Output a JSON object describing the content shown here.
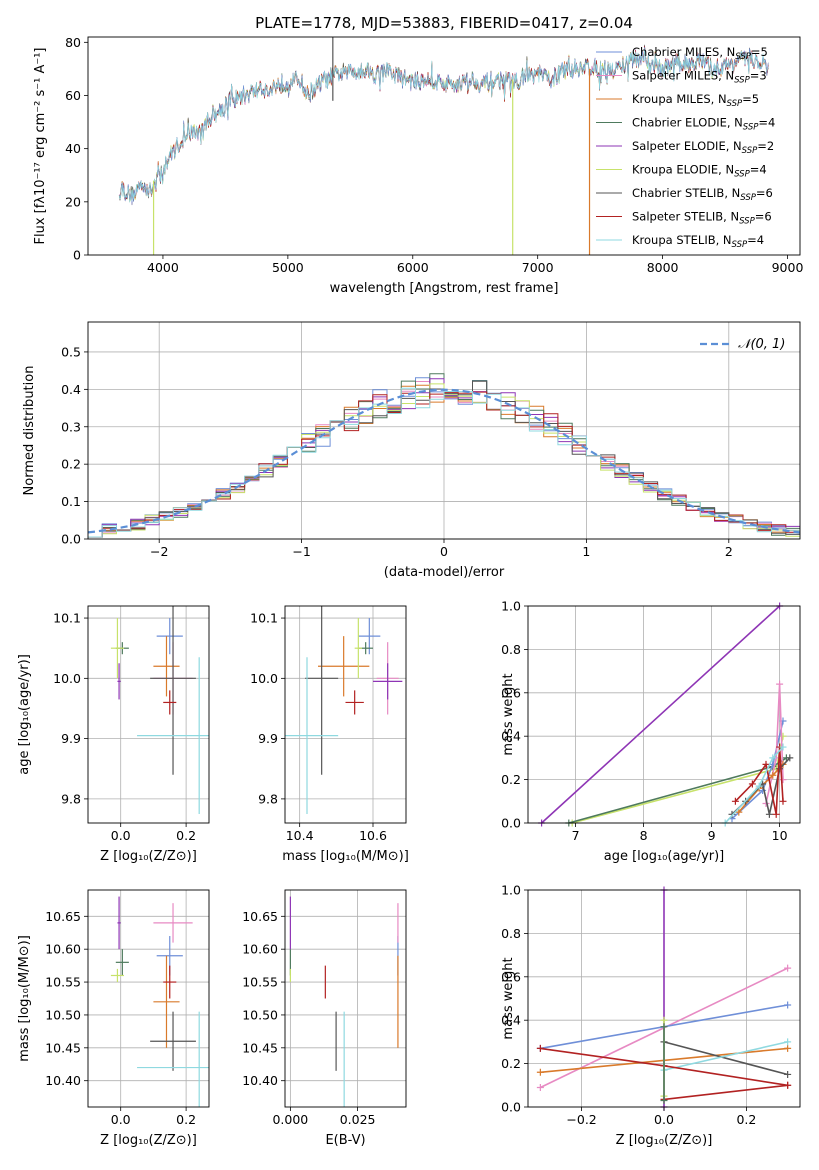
{
  "colors": {
    "blue": "#6f8fd8",
    "pink": "#e78ac3",
    "orange": "#d97a2b",
    "darkgreen": "#4e7a5d",
    "purple": "#8e35b5",
    "yellowgreen": "#c7e26a",
    "darkgray": "#555555",
    "darkred": "#b22222",
    "cyan": "#8fd9e0",
    "gauss": "#5b8fd6",
    "grid": "#b0b0b0"
  },
  "chart_data": [
    {
      "id": "spectrum",
      "type": "line",
      "title": "PLATE=1778, MJD=53883, FIBERID=0417, z=0.04",
      "xlabel": "wavelength [Angstrom, rest frame]",
      "ylabel": "Flux [fλ10⁻¹⁷ erg cm⁻² s⁻¹ A⁻¹]",
      "xlim": [
        3400,
        9100
      ],
      "ylim": [
        0,
        82
      ],
      "xticks": [
        4000,
        5000,
        6000,
        7000,
        8000,
        9000
      ],
      "yticks": [
        0,
        20,
        40,
        60,
        80
      ],
      "grid": false,
      "legend_position": "upper-right",
      "legend": [
        {
          "label": "Chabrier MILES, N",
          "sub": "SSP",
          "suffix": "=5",
          "color": "blue"
        },
        {
          "label": "Salpeter MILES, N",
          "sub": "SSP",
          "suffix": "=3",
          "color": "pink"
        },
        {
          "label": "Kroupa MILES, N",
          "sub": "SSP",
          "suffix": "=5",
          "color": "orange"
        },
        {
          "label": "Chabrier ELODIE, N",
          "sub": "SSP",
          "suffix": "=4",
          "color": "darkgreen"
        },
        {
          "label": "Salpeter ELODIE, N",
          "sub": "SSP",
          "suffix": "=2",
          "color": "purple"
        },
        {
          "label": "Kroupa ELODIE, N",
          "sub": "SSP",
          "suffix": "=4",
          "color": "yellowgreen"
        },
        {
          "label": "Chabrier STELIB, N",
          "sub": "SSP",
          "suffix": "=6",
          "color": "darkgray"
        },
        {
          "label": "Salpeter STELIB, N",
          "sub": "SSP",
          "suffix": "=6",
          "color": "darkred"
        },
        {
          "label": "Kroupa STELIB, N",
          "sub": "SSP",
          "suffix": "=4",
          "color": "cyan"
        }
      ],
      "continuum": [
        [
          3650,
          26
        ],
        [
          3700,
          24
        ],
        [
          3750,
          22
        ],
        [
          3800,
          25
        ],
        [
          3850,
          27
        ],
        [
          3900,
          23
        ],
        [
          3950,
          29
        ],
        [
          4000,
          30
        ],
        [
          4050,
          37
        ],
        [
          4100,
          40
        ],
        [
          4150,
          43
        ],
        [
          4200,
          44
        ],
        [
          4250,
          47
        ],
        [
          4300,
          45
        ],
        [
          4350,
          50
        ],
        [
          4400,
          53
        ],
        [
          4450,
          54
        ],
        [
          4500,
          57
        ],
        [
          4600,
          59
        ],
        [
          4700,
          61
        ],
        [
          4800,
          63
        ],
        [
          4850,
          61
        ],
        [
          4900,
          64
        ],
        [
          5000,
          65
        ],
        [
          5100,
          66
        ],
        [
          5150,
          60
        ],
        [
          5200,
          62
        ],
        [
          5300,
          66
        ],
        [
          5400,
          68
        ],
        [
          5500,
          69
        ],
        [
          5600,
          70
        ],
        [
          5700,
          68
        ],
        [
          5800,
          69
        ],
        [
          5900,
          67
        ],
        [
          6000,
          65
        ],
        [
          6100,
          66
        ],
        [
          6200,
          65
        ],
        [
          6300,
          64
        ],
        [
          6400,
          65
        ],
        [
          6500,
          66
        ],
        [
          6560,
          64
        ],
        [
          6600,
          65
        ],
        [
          6700,
          66
        ],
        [
          6800,
          65
        ],
        [
          6900,
          67
        ],
        [
          7000,
          68
        ],
        [
          7100,
          66
        ],
        [
          7200,
          69
        ],
        [
          7300,
          70
        ],
        [
          7400,
          71
        ],
        [
          7500,
          70
        ],
        [
          7600,
          69
        ],
        [
          7700,
          72
        ],
        [
          7800,
          74
        ],
        [
          7900,
          72
        ],
        [
          8000,
          70
        ],
        [
          8100,
          72
        ],
        [
          8200,
          72
        ],
        [
          8300,
          73
        ],
        [
          8400,
          70
        ],
        [
          8500,
          71
        ],
        [
          8600,
          73
        ],
        [
          8700,
          74
        ],
        [
          8800,
          72
        ],
        [
          8850,
          70
        ]
      ],
      "glitches": [
        {
          "x": 3925,
          "ymin": 0,
          "ymax": 28,
          "color": "yellowgreen"
        },
        {
          "x": 6800,
          "ymin": 0,
          "ymax": 66,
          "color": "yellowgreen"
        },
        {
          "x": 7415,
          "ymin": 0,
          "ymax": 70,
          "color": "orange"
        },
        {
          "x": 5360,
          "ymin": 58,
          "ymax": 82,
          "color": "darkgray"
        }
      ]
    },
    {
      "id": "residuals",
      "type": "area",
      "xlabel": "(data-model)/error",
      "ylabel": "Normed distribution",
      "xlim": [
        -2.5,
        2.5
      ],
      "ylim": [
        0,
        0.58
      ],
      "xticks": [
        -2,
        -1,
        0,
        1,
        2
      ],
      "yticks": [
        0.0,
        0.1,
        0.2,
        0.3,
        0.4,
        0.5
      ],
      "grid": true,
      "legend_position": "upper-right",
      "gaussian_label": "𝒩(0, 1)",
      "bin_width": 0.1,
      "bin_start": -2.5
    },
    {
      "id": "age_vs_Z",
      "type": "scatter",
      "xlabel": "Z [log₁₀(Z/Z⊙)]",
      "ylabel": "age  [log₁₀(age/yr)]",
      "xlim": [
        -0.1,
        0.27
      ],
      "ylim": [
        9.76,
        10.12
      ],
      "xticks": [
        0.0,
        0.2
      ],
      "yticks": [
        9.8,
        9.9,
        10.0,
        10.1
      ],
      "grid": true
    },
    {
      "id": "age_vs_mass",
      "type": "scatter",
      "xlabel": "mass [log₁₀(M/M⊙)]",
      "ylabel": "",
      "xlim": [
        10.36,
        10.69
      ],
      "ylim": [
        9.76,
        10.12
      ],
      "xticks": [
        10.4,
        10.6
      ],
      "yticks": [
        9.8,
        9.9,
        10.0,
        10.1
      ],
      "grid": true
    },
    {
      "id": "weight_vs_age",
      "type": "line",
      "xlabel": "age  [log₁₀(age/yr)]",
      "ylabel": "mass weight",
      "xlim": [
        6.3,
        10.3
      ],
      "ylim": [
        0,
        1.0
      ],
      "xticks": [
        7,
        8,
        9,
        10
      ],
      "yticks": [
        0.0,
        0.2,
        0.4,
        0.6,
        0.8,
        1.0
      ],
      "grid": true
    },
    {
      "id": "mass_vs_Z",
      "type": "scatter",
      "xlabel": "Z [log₁₀(Z/Z⊙)]",
      "ylabel": "mass [log₁₀(M/M⊙)]",
      "xlim": [
        -0.1,
        0.27
      ],
      "ylim": [
        10.36,
        10.69
      ],
      "xticks": [
        0.0,
        0.2
      ],
      "yticks": [
        10.4,
        10.45,
        10.5,
        10.55,
        10.6,
        10.65
      ],
      "grid": true
    },
    {
      "id": "mass_vs_ebv",
      "type": "scatter",
      "xlabel": "E(B-V)",
      "ylabel": "",
      "xlim": [
        -0.002,
        0.043
      ],
      "ylim": [
        10.36,
        10.69
      ],
      "xticks": [
        0.0,
        0.025
      ],
      "yticks": [
        10.4,
        10.45,
        10.5,
        10.55,
        10.6,
        10.65
      ],
      "grid": true
    },
    {
      "id": "weight_vs_Z",
      "type": "line",
      "xlabel": "Z [log₁₀(Z/Z⊙)]",
      "ylabel": "mass weight",
      "xlim": [
        -0.33,
        0.33
      ],
      "ylim": [
        0,
        1.0
      ],
      "xticks": [
        -0.2,
        0.0,
        0.2
      ],
      "yticks": [
        0.0,
        0.2,
        0.4,
        0.6,
        0.8,
        1.0
      ],
      "grid": true
    }
  ],
  "fits": [
    {
      "color": "blue",
      "Z": 0.15,
      "Zerr": 0.04,
      "age": 10.07,
      "ageerr": 0.03,
      "mass": 10.59,
      "masserr": 0.03,
      "ebv": 0.04
    },
    {
      "color": "pink",
      "Z": 0.16,
      "Zerr": 0.06,
      "age": 10.0,
      "ageerr": 0.06,
      "mass": 10.64,
      "masserr": 0.03,
      "ebv": 0.04
    },
    {
      "color": "orange",
      "Z": 0.14,
      "Zerr": 0.04,
      "age": 10.02,
      "ageerr": 0.05,
      "mass": 10.52,
      "masserr": 0.07,
      "ebv": 0.04
    },
    {
      "color": "darkgreen",
      "Z": 0.005,
      "Zerr": 0.02,
      "age": 10.05,
      "ageerr": 0.01,
      "mass": 10.58,
      "masserr": 0.02,
      "ebv": 0.0
    },
    {
      "color": "purple",
      "Z": -0.005,
      "Zerr": 0.005,
      "age": 9.995,
      "ageerr": 0.03,
      "mass": 10.64,
      "masserr": 0.04,
      "ebv": 0.0
    },
    {
      "color": "yellowgreen",
      "Z": -0.01,
      "Zerr": 0.02,
      "age": 10.05,
      "ageerr": 0.05,
      "mass": 10.56,
      "masserr": 0.01,
      "ebv": 0.0
    },
    {
      "color": "darkgray",
      "Z": 0.16,
      "Zerr": 0.07,
      "age": 10.0,
      "ageerr": 0.16,
      "mass": 10.46,
      "masserr": 0.045,
      "ebv": 0.017
    },
    {
      "color": "darkred",
      "Z": 0.15,
      "Zerr": 0.02,
      "age": 9.96,
      "ageerr": 0.02,
      "mass": 10.55,
      "masserr": 0.025,
      "ebv": 0.013
    },
    {
      "color": "cyan",
      "Z": 0.24,
      "Zerr": 0.19,
      "age": 9.905,
      "ageerr": 0.13,
      "mass": 10.42,
      "masserr": 0.085,
      "ebv": 0.02
    }
  ],
  "ssp_weights": [
    {
      "color": "purple",
      "ages": [
        6.5,
        10.0
      ],
      "weights": [
        0.0,
        1.0
      ]
    },
    {
      "color": "yellowgreen",
      "ages": [
        6.95,
        9.95,
        10.05
      ],
      "weights": [
        0.0,
        0.25,
        0.4
      ]
    },
    {
      "color": "darkgreen",
      "ages": [
        6.9,
        9.9,
        10.1
      ],
      "weights": [
        0.0,
        0.26,
        0.3
      ]
    },
    {
      "color": "blue",
      "ages": [
        9.3,
        9.75,
        9.9,
        10.05
      ],
      "weights": [
        0.02,
        0.15,
        0.27,
        0.47
      ]
    },
    {
      "color": "pink",
      "ages": [
        9.8,
        9.95,
        10.0,
        10.05
      ],
      "weights": [
        0.09,
        0.3,
        0.64,
        0.2
      ]
    },
    {
      "color": "orange",
      "ages": [
        9.4,
        9.7,
        9.9,
        10.05
      ],
      "weights": [
        0.05,
        0.16,
        0.22,
        0.27
      ]
    },
    {
      "color": "darkgray",
      "ages": [
        9.3,
        9.5,
        9.75,
        9.85,
        10.0,
        10.15
      ],
      "weights": [
        0.04,
        0.1,
        0.18,
        0.04,
        0.25,
        0.3
      ]
    },
    {
      "color": "darkred",
      "ages": [
        9.35,
        9.6,
        9.8,
        9.95,
        10.0,
        10.05
      ],
      "weights": [
        0.1,
        0.18,
        0.27,
        0.04,
        0.35,
        0.1
      ]
    },
    {
      "color": "cyan",
      "ages": [
        9.2,
        9.7,
        9.9,
        10.05
      ],
      "weights": [
        0.0,
        0.17,
        0.3,
        0.35
      ]
    }
  ],
  "weight_vs_Z_lines": [
    {
      "color": "purple",
      "Z": [
        0.0,
        0.0
      ],
      "weights": [
        1.0,
        0.0
      ]
    },
    {
      "color": "pink",
      "Z": [
        -0.3,
        0.3
      ],
      "weights": [
        0.09,
        0.64
      ]
    },
    {
      "color": "blue",
      "Z": [
        -0.3,
        0.3
      ],
      "weights": [
        0.27,
        0.47
      ]
    },
    {
      "color": "orange",
      "Z": [
        -0.3,
        0.3
      ],
      "weights": [
        0.16,
        0.27
      ]
    },
    {
      "color": "darkgray",
      "Z": [
        0.0,
        0.3
      ],
      "weights": [
        0.3,
        0.15
      ]
    },
    {
      "color": "cyan",
      "Z": [
        0.0,
        0.3
      ],
      "weights": [
        0.17,
        0.3
      ]
    },
    {
      "color": "darkred",
      "Z": [
        -0.3,
        0.0,
        0.3
      ],
      "weights": [
        0.27,
        0.19,
        0.1
      ]
    },
    {
      "color": "darkred",
      "Z": [
        0.0,
        0.3
      ],
      "weights": [
        0.035,
        0.1
      ]
    },
    {
      "color": "yellowgreen",
      "Z": [
        0.0,
        0.0
      ],
      "weights": [
        0.4,
        0.05
      ]
    },
    {
      "color": "darkgreen",
      "Z": [
        0.0,
        0.0
      ],
      "weights": [
        0.37,
        0.03
      ]
    }
  ]
}
